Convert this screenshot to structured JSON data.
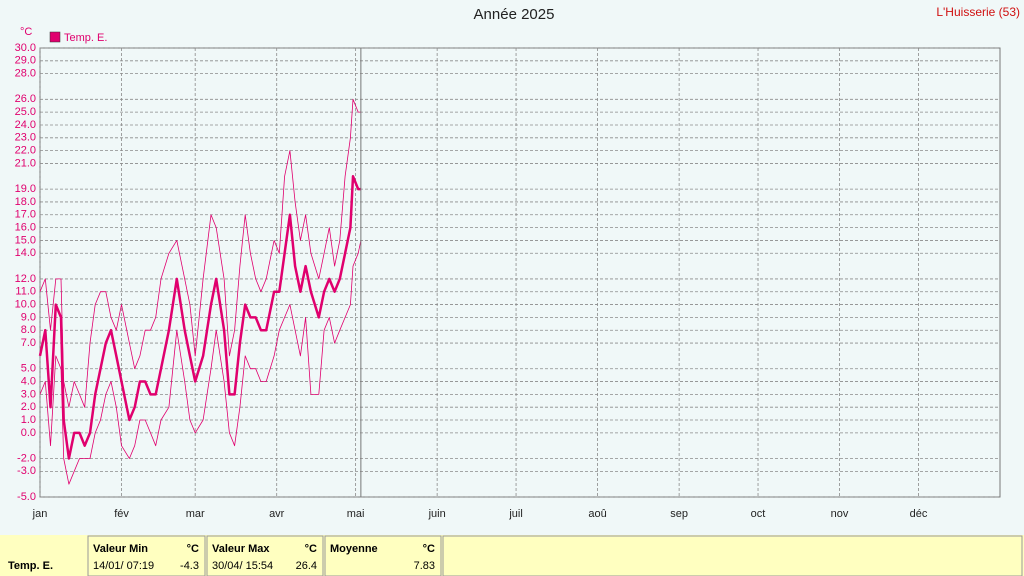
{
  "chart_data": {
    "type": "line",
    "title": "Année 2025",
    "y_unit": "°C",
    "x": [
      0,
      2,
      4,
      6,
      8,
      9,
      11,
      13,
      15,
      17,
      19,
      21,
      23,
      25,
      27,
      29,
      31,
      34,
      36,
      38,
      40,
      42,
      44,
      46,
      49,
      52,
      55,
      57,
      59,
      62,
      65,
      67,
      70,
      72,
      74,
      76,
      78,
      80,
      82,
      84,
      86,
      89,
      91,
      93,
      95,
      97,
      99,
      101,
      103,
      106,
      108,
      110,
      112,
      114,
      116,
      118,
      119,
      121,
      122
    ],
    "series": [
      {
        "name": "Temp. E.",
        "color": "#e0006e",
        "width": 2.5,
        "values": [
          6,
          8,
          2,
          10,
          9,
          1,
          -2,
          0,
          0,
          -1,
          0,
          3,
          5,
          7,
          8,
          6,
          4,
          1,
          2,
          4,
          4,
          3,
          3,
          5,
          8,
          12,
          8,
          6,
          4,
          6,
          10,
          12,
          8,
          3,
          3,
          7,
          10,
          9,
          9,
          8,
          8,
          11,
          11,
          14,
          17,
          13,
          11,
          13,
          11,
          9,
          11,
          12,
          11,
          12,
          14,
          16,
          20,
          19,
          19
        ]
      },
      {
        "color": "#e0006e",
        "width": 0.8,
        "values": [
          11,
          12,
          8,
          12,
          12,
          4,
          2,
          4,
          3,
          2,
          7,
          10,
          11,
          11,
          9,
          8,
          10,
          7,
          5,
          6,
          8,
          8,
          9,
          12,
          14,
          15,
          12,
          10,
          6,
          12,
          17,
          16,
          12,
          6,
          8,
          13,
          17,
          14,
          12,
          11,
          12,
          15,
          14,
          20,
          22,
          18,
          15,
          17,
          14,
          12,
          14,
          16,
          13,
          15,
          20,
          23,
          26,
          25,
          25
        ]
      },
      {
        "color": "#e0006e",
        "width": 0.8,
        "values": [
          3,
          4,
          -1,
          6,
          5,
          -2,
          -4,
          -3,
          -2,
          -2,
          -2,
          0,
          1,
          3,
          4,
          2,
          -1,
          -2,
          -1,
          1,
          1,
          0,
          -1,
          1,
          2,
          8,
          4,
          1,
          0,
          1,
          5,
          8,
          4,
          0,
          -1,
          2,
          6,
          5,
          5,
          4,
          4,
          6,
          8,
          9,
          10,
          8,
          6,
          9,
          3,
          3,
          8,
          9,
          7,
          8,
          9,
          10,
          13,
          14,
          15
        ]
      }
    ],
    "xlim": [
      0,
      365
    ],
    "xticks": [
      {
        "value": 0,
        "label": "jan"
      },
      {
        "value": 31,
        "label": "fév"
      },
      {
        "value": 59,
        "label": "mar"
      },
      {
        "value": 90,
        "label": "avr"
      },
      {
        "value": 120,
        "label": "mai"
      },
      {
        "value": 151,
        "label": "juin"
      },
      {
        "value": 181,
        "label": "juil"
      },
      {
        "value": 212,
        "label": "aoû"
      },
      {
        "value": 243,
        "label": "sep"
      },
      {
        "value": 273,
        "label": "oct"
      },
      {
        "value": 304,
        "label": "nov"
      },
      {
        "value": 334,
        "label": "déc"
      }
    ],
    "ylim": [
      -5,
      30
    ],
    "yticks": [
      {
        "value": 30,
        "label": "30.0"
      },
      {
        "value": 29,
        "label": "29.0"
      },
      {
        "value": 28,
        "label": "28.0"
      },
      {
        "value": 26,
        "label": "26.0"
      },
      {
        "value": 25,
        "label": "25.0"
      },
      {
        "value": 24,
        "label": "24.0"
      },
      {
        "value": 23,
        "label": "23.0"
      },
      {
        "value": 22,
        "label": "22.0"
      },
      {
        "value": 21,
        "label": "21.0"
      },
      {
        "value": 19,
        "label": "19.0"
      },
      {
        "value": 18,
        "label": "18.0"
      },
      {
        "value": 17,
        "label": "17.0"
      },
      {
        "value": 16,
        "label": "16.0"
      },
      {
        "value": 15,
        "label": "15.0"
      },
      {
        "value": 14,
        "label": "14.0"
      },
      {
        "value": 12,
        "label": "12.0"
      },
      {
        "value": 11,
        "label": "11.0"
      },
      {
        "value": 10,
        "label": "10.0"
      },
      {
        "value": 9,
        "label": "9.0"
      },
      {
        "value": 8,
        "label": "8.0"
      },
      {
        "value": 7,
        "label": "7.0"
      },
      {
        "value": 5,
        "label": "5.0"
      },
      {
        "value": 4,
        "label": "4.0"
      },
      {
        "value": 3,
        "label": "3.0"
      },
      {
        "value": 2,
        "label": "2.0"
      },
      {
        "value": 1,
        "label": "1.0"
      },
      {
        "value": 0,
        "label": "0.0"
      },
      {
        "value": -2,
        "label": "-2.0"
      },
      {
        "value": -3,
        "label": "-3.0"
      },
      {
        "value": -5,
        "label": "-5.0"
      }
    ],
    "grid": true
  },
  "station": "L'Huisserie (53)",
  "summary": {
    "label": "Temp. E.",
    "columns": [
      {
        "title": "Valeur Min",
        "unit": "°C",
        "date": "14/01/ 07:19",
        "value": "-4.3"
      },
      {
        "title": "Valeur Max",
        "unit": "°C",
        "date": "30/04/ 15:54",
        "value": "26.4"
      },
      {
        "title": "Moyenne",
        "unit": "°C",
        "value": "7.83"
      }
    ]
  }
}
